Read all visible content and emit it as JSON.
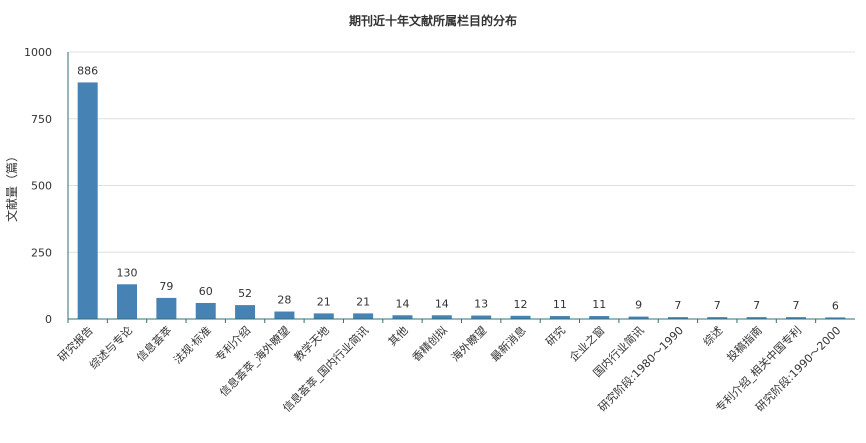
{
  "chart_data": {
    "type": "bar",
    "title": "期刊近十年文献所属栏目的分布",
    "ylabel": "文献量（篇）",
    "xlabel": "",
    "ylim": [
      0,
      1000
    ],
    "yticks": [
      0,
      250,
      500,
      750,
      1000
    ],
    "grid": true,
    "bar_color": "#4682b4",
    "categories": [
      "研究报告",
      "综述与专论",
      "信息荟萃",
      "法规·标准",
      "专利介绍",
      "信息荟萃_海外瞭望",
      "教学天地",
      "信息荟萃_国内行业简讯",
      "其他",
      "香精创拟",
      "海外瞭望",
      "最新消息",
      "研究",
      "企业之窗",
      "国内行业简讯",
      "研究阶段:1980～1990",
      "综述",
      "投稿指南",
      "专利介绍_相关中国专利",
      "研究阶段:1990～2000"
    ],
    "values": [
      886,
      130,
      79,
      60,
      52,
      28,
      21,
      21,
      14,
      14,
      13,
      12,
      11,
      11,
      9,
      7,
      7,
      7,
      7,
      6
    ]
  }
}
